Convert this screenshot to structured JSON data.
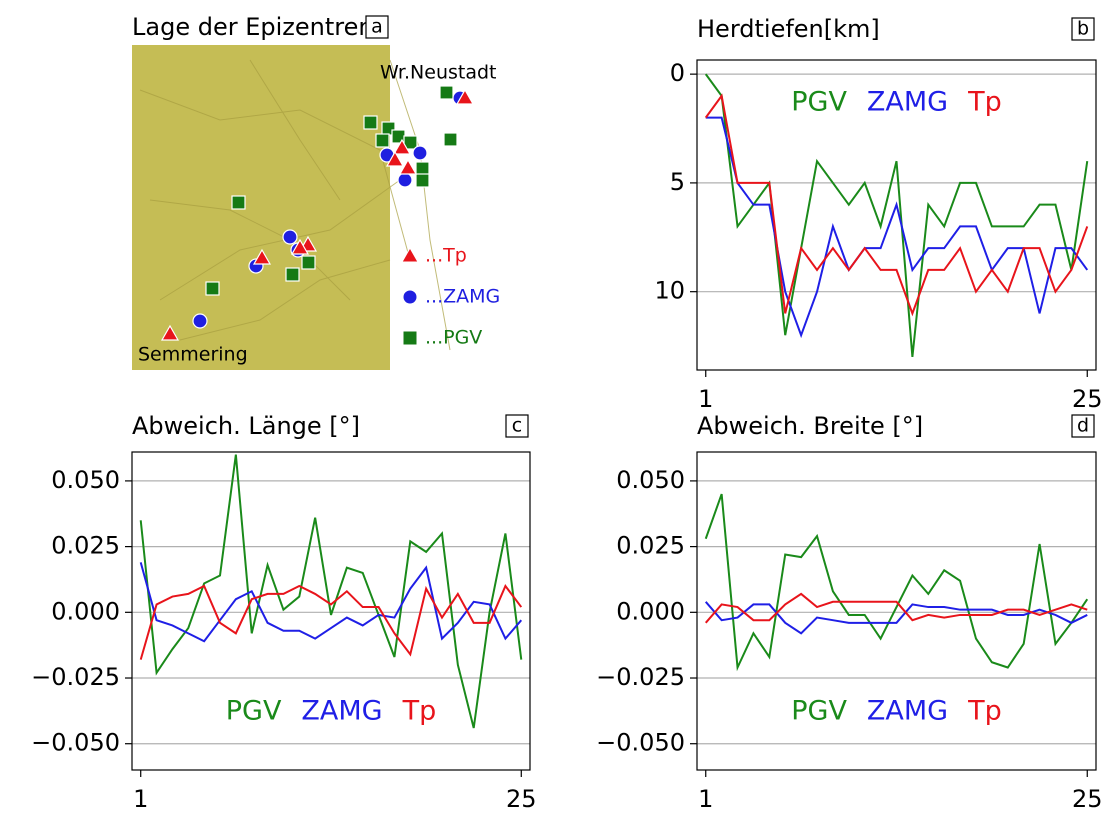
{
  "chart_data": [
    {
      "type": "map",
      "title": "Lage der Epizentren",
      "panel": "a",
      "places": [
        "Wr.Neustadt",
        "Semmering"
      ],
      "legend": [
        {
          "name": "...Tp",
          "color": "#e8141b",
          "marker": "triangle"
        },
        {
          "name": "...ZAMG",
          "color": "#1f1fe0",
          "marker": "circle"
        },
        {
          "name": "...PGV",
          "color": "#157a15",
          "marker": "square"
        }
      ]
    },
    {
      "type": "line",
      "title": "Herdtiefen[km]",
      "panel": "b",
      "legend": "upper center",
      "x": [
        1,
        2,
        3,
        4,
        5,
        6,
        7,
        8,
        9,
        10,
        11,
        12,
        13,
        14,
        15,
        16,
        17,
        18,
        19,
        20,
        21,
        22,
        23,
        24,
        25
      ],
      "xlim": [
        0.45,
        25.55
      ],
      "xticks": [
        1,
        25
      ],
      "ylim": [
        13.6,
        -0.65
      ],
      "yticks": [
        0,
        5,
        10
      ],
      "grid": true,
      "series": [
        {
          "name": "PGV",
          "color": "#1a8a1a",
          "values": [
            0,
            1,
            7,
            6,
            5,
            12,
            8,
            4,
            5,
            6,
            5,
            7,
            4,
            13,
            6,
            7,
            5,
            5,
            7,
            7,
            7,
            6,
            6,
            9,
            4
          ]
        },
        {
          "name": "ZAMG",
          "color": "#1f1fe6",
          "values": [
            2,
            2,
            5,
            6,
            6,
            10,
            12,
            10,
            7,
            9,
            8,
            8,
            6,
            9,
            8,
            8,
            7,
            7,
            9,
            8,
            8,
            11,
            8,
            8,
            9
          ]
        },
        {
          "name": "Tp",
          "color": "#e8141b",
          "values": [
            2,
            1,
            5,
            5,
            5,
            11,
            8,
            9,
            8,
            9,
            8,
            9,
            9,
            11,
            9,
            9,
            8,
            10,
            9,
            10,
            8,
            8,
            10,
            9,
            7
          ]
        }
      ]
    },
    {
      "type": "line",
      "title": "Abweich. Länge [°]",
      "panel": "c",
      "legend": "lower center",
      "x": [
        1,
        2,
        3,
        4,
        5,
        6,
        7,
        8,
        9,
        10,
        11,
        12,
        13,
        14,
        15,
        16,
        17,
        18,
        19,
        20,
        21,
        22,
        23,
        24,
        25
      ],
      "xlim": [
        0.45,
        25.55
      ],
      "xticks": [
        1,
        25
      ],
      "ylim": [
        -0.06,
        0.061
      ],
      "grid": true,
      "yticks": [
        {
          "value": -0.05,
          "label": "−0.050"
        },
        {
          "value": -0.025,
          "label": "−0.025"
        },
        {
          "value": 0,
          "label": "0.000"
        },
        {
          "value": 0.025,
          "label": "0.025"
        },
        {
          "value": 0.05,
          "label": "0.050"
        }
      ],
      "series": [
        {
          "name": "PGV",
          "color": "#1a8a1a",
          "values": [
            0.035,
            -0.023,
            -0.014,
            -0.006,
            0.011,
            0.014,
            0.06,
            -0.008,
            0.018,
            0.001,
            0.006,
            0.036,
            -0.001,
            0.017,
            0.015,
            -0.001,
            -0.017,
            0.027,
            0.023,
            0.03,
            -0.02,
            -0.044,
            0.0,
            0.03,
            -0.018
          ]
        },
        {
          "name": "ZAMG",
          "color": "#1f1fe6",
          "values": [
            0.019,
            -0.003,
            -0.005,
            -0.008,
            -0.011,
            -0.003,
            0.005,
            0.008,
            -0.004,
            -0.007,
            -0.007,
            -0.01,
            -0.006,
            -0.002,
            -0.005,
            -0.001,
            -0.002,
            0.009,
            0.017,
            -0.01,
            -0.004,
            0.004,
            0.003,
            -0.01,
            -0.003
          ]
        },
        {
          "name": "Tp",
          "color": "#e8141b",
          "values": [
            -0.018,
            0.003,
            0.006,
            0.007,
            0.01,
            -0.004,
            -0.008,
            0.005,
            0.007,
            0.007,
            0.01,
            0.007,
            0.003,
            0.008,
            0.002,
            0.002,
            -0.008,
            -0.016,
            0.009,
            -0.002,
            0.007,
            -0.004,
            -0.004,
            0.01,
            0.002
          ]
        }
      ]
    },
    {
      "type": "line",
      "title": "Abweich. Breite [°]",
      "panel": "d",
      "legend": "lower center",
      "x": [
        1,
        2,
        3,
        4,
        5,
        6,
        7,
        8,
        9,
        10,
        11,
        12,
        13,
        14,
        15,
        16,
        17,
        18,
        19,
        20,
        21,
        22,
        23,
        24,
        25
      ],
      "xlim": [
        0.45,
        25.55
      ],
      "xticks": [
        1,
        25
      ],
      "ylim": [
        -0.06,
        0.061
      ],
      "grid": true,
      "yticks": [
        {
          "value": -0.05,
          "label": "−0.050"
        },
        {
          "value": -0.025,
          "label": "−0.025"
        },
        {
          "value": 0,
          "label": "0.000"
        },
        {
          "value": 0.025,
          "label": "0.025"
        },
        {
          "value": 0.05,
          "label": "0.050"
        }
      ],
      "series": [
        {
          "name": "PGV",
          "color": "#1a8a1a",
          "values": [
            0.028,
            0.045,
            -0.021,
            -0.008,
            -0.017,
            0.022,
            0.021,
            0.029,
            0.008,
            -0.001,
            -0.001,
            -0.01,
            0.002,
            0.014,
            0.007,
            0.016,
            0.012,
            -0.01,
            -0.019,
            -0.021,
            -0.012,
            0.026,
            -0.012,
            -0.004,
            0.005
          ]
        },
        {
          "name": "ZAMG",
          "color": "#1f1fe6",
          "values": [
            0.004,
            -0.003,
            -0.002,
            0.003,
            0.003,
            -0.004,
            -0.008,
            -0.002,
            -0.003,
            -0.004,
            -0.004,
            -0.004,
            -0.004,
            0.003,
            0.002,
            0.002,
            0.001,
            0.001,
            0.001,
            -0.001,
            -0.001,
            0.001,
            -0.001,
            -0.004,
            -0.001
          ]
        },
        {
          "name": "Tp",
          "color": "#e8141b",
          "values": [
            -0.004,
            0.003,
            0.002,
            -0.003,
            -0.003,
            0.003,
            0.007,
            0.002,
            0.004,
            0.004,
            0.004,
            0.004,
            0.004,
            -0.003,
            -0.001,
            -0.002,
            -0.001,
            -0.001,
            -0.001,
            0.001,
            0.001,
            -0.001,
            0.001,
            0.003,
            0.001
          ]
        }
      ]
    }
  ]
}
